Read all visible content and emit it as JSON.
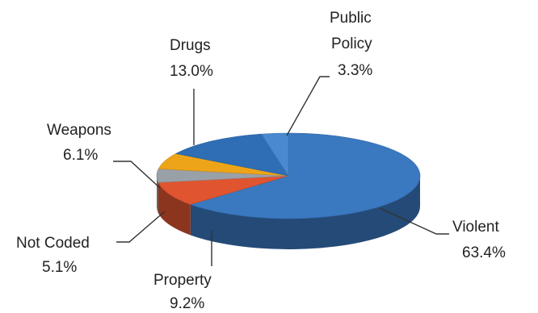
{
  "chart_data": {
    "type": "pie",
    "title": "",
    "style": "3d-pie",
    "slices": [
      {
        "name": "Violent",
        "value": 63.4,
        "label": "63.4%",
        "color": "#3a78c0"
      },
      {
        "name": "Property",
        "value": 9.2,
        "label": "9.2%",
        "color": "#e05530"
      },
      {
        "name": "Not Coded",
        "value": 5.1,
        "label": "5.1%",
        "color": "#9aa0a8"
      },
      {
        "name": "Weapons",
        "value": 6.1,
        "label": "6.1%",
        "color": "#eea418"
      },
      {
        "name": "Drugs",
        "value": 13.0,
        "label": "13.0%",
        "color": "#2f6db5"
      },
      {
        "name": "Public Policy",
        "value": 3.3,
        "label": "3.3%",
        "color": "#4a88d0"
      }
    ]
  }
}
